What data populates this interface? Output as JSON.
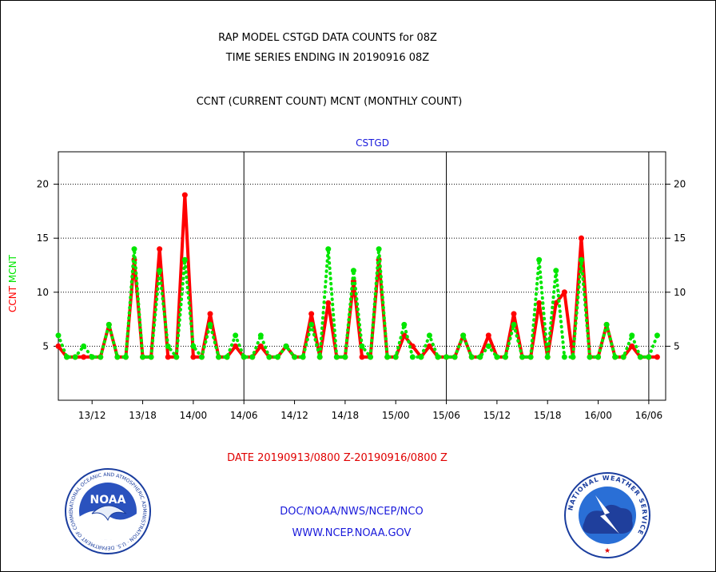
{
  "header": {
    "title_line1": "RAP MODEL CSTGD DATA COUNTS for 08Z",
    "title_line2": "TIME SERIES ENDING IN 20190916 08Z",
    "subtitle": "CCNT (CURRENT COUNT) MCNT (MONTHLY COUNT)"
  },
  "colors": {
    "ccnt": "#ff0000",
    "mcnt": "#00e600",
    "link_blue": "#1a1adb",
    "date_red": "#e00000"
  },
  "chart_data": {
    "type": "line",
    "title": "CSTGD",
    "ylabel_ccnt": "CCNT",
    "ylabel_mcnt": "MCNT",
    "ylim": [
      0,
      23
    ],
    "xlim": [
      0,
      72
    ],
    "yticks": [
      5,
      10,
      15,
      20
    ],
    "xtick_positions": [
      4,
      10,
      16,
      22,
      28,
      34,
      40,
      46,
      52,
      58,
      64,
      70
    ],
    "xtick_labels": [
      "13/12",
      "13/18",
      "14/00",
      "14/06",
      "14/12",
      "14/18",
      "15/00",
      "15/06",
      "15/12",
      "15/18",
      "16/00",
      "16/06"
    ],
    "day_dividers": [
      22,
      46,
      70
    ],
    "grid": "horizontal-dotted",
    "series": [
      {
        "name": "CCNT",
        "color": "#ff0000",
        "style": "solid",
        "values": [
          5,
          4,
          4,
          4,
          4,
          4,
          7,
          4,
          4,
          13,
          4,
          4,
          14,
          4,
          4,
          19,
          4,
          4,
          8,
          4,
          4,
          5,
          4,
          4,
          5,
          4,
          4,
          5,
          4,
          4,
          8,
          4,
          9,
          4,
          4,
          11,
          4,
          4,
          13,
          4,
          4,
          6,
          5,
          4,
          5,
          4,
          4,
          4,
          6,
          4,
          4,
          6,
          4,
          4,
          8,
          4,
          4,
          9,
          4,
          9,
          10,
          4,
          15,
          4,
          4,
          7,
          4,
          4,
          5,
          4,
          4,
          4
        ]
      },
      {
        "name": "MCNT",
        "color": "#00e600",
        "style": "dotted",
        "values": [
          6,
          4,
          4,
          5,
          4,
          4,
          7,
          4,
          4,
          14,
          4,
          4,
          12,
          5,
          4,
          13,
          5,
          4,
          7,
          4,
          4,
          6,
          4,
          4,
          6,
          4,
          4,
          5,
          4,
          4,
          7,
          4,
          14,
          4,
          4,
          12,
          5,
          4,
          14,
          4,
          4,
          7,
          4,
          4,
          6,
          4,
          4,
          4,
          6,
          4,
          4,
          5,
          4,
          4,
          7,
          4,
          4,
          13,
          4,
          12,
          4,
          4,
          13,
          4,
          4,
          7,
          4,
          4,
          6,
          4,
          4,
          6
        ]
      }
    ]
  },
  "footer": {
    "date_range": "DATE 20190913/0800 Z-20190916/0800 Z",
    "org": "DOC/NOAA/NWS/NCEP/NCO",
    "url": "WWW.NCEP.NOAA.GOV"
  },
  "logos": {
    "noaa_inner": "NOAA",
    "noaa_ring": "NATIONAL OCEANIC AND ATMOSPHERIC ADMINISTRATION · U.S. DEPARTMENT OF COMMERCE ·",
    "nws_ring": "NATIONAL WEATHER SERVICE"
  }
}
